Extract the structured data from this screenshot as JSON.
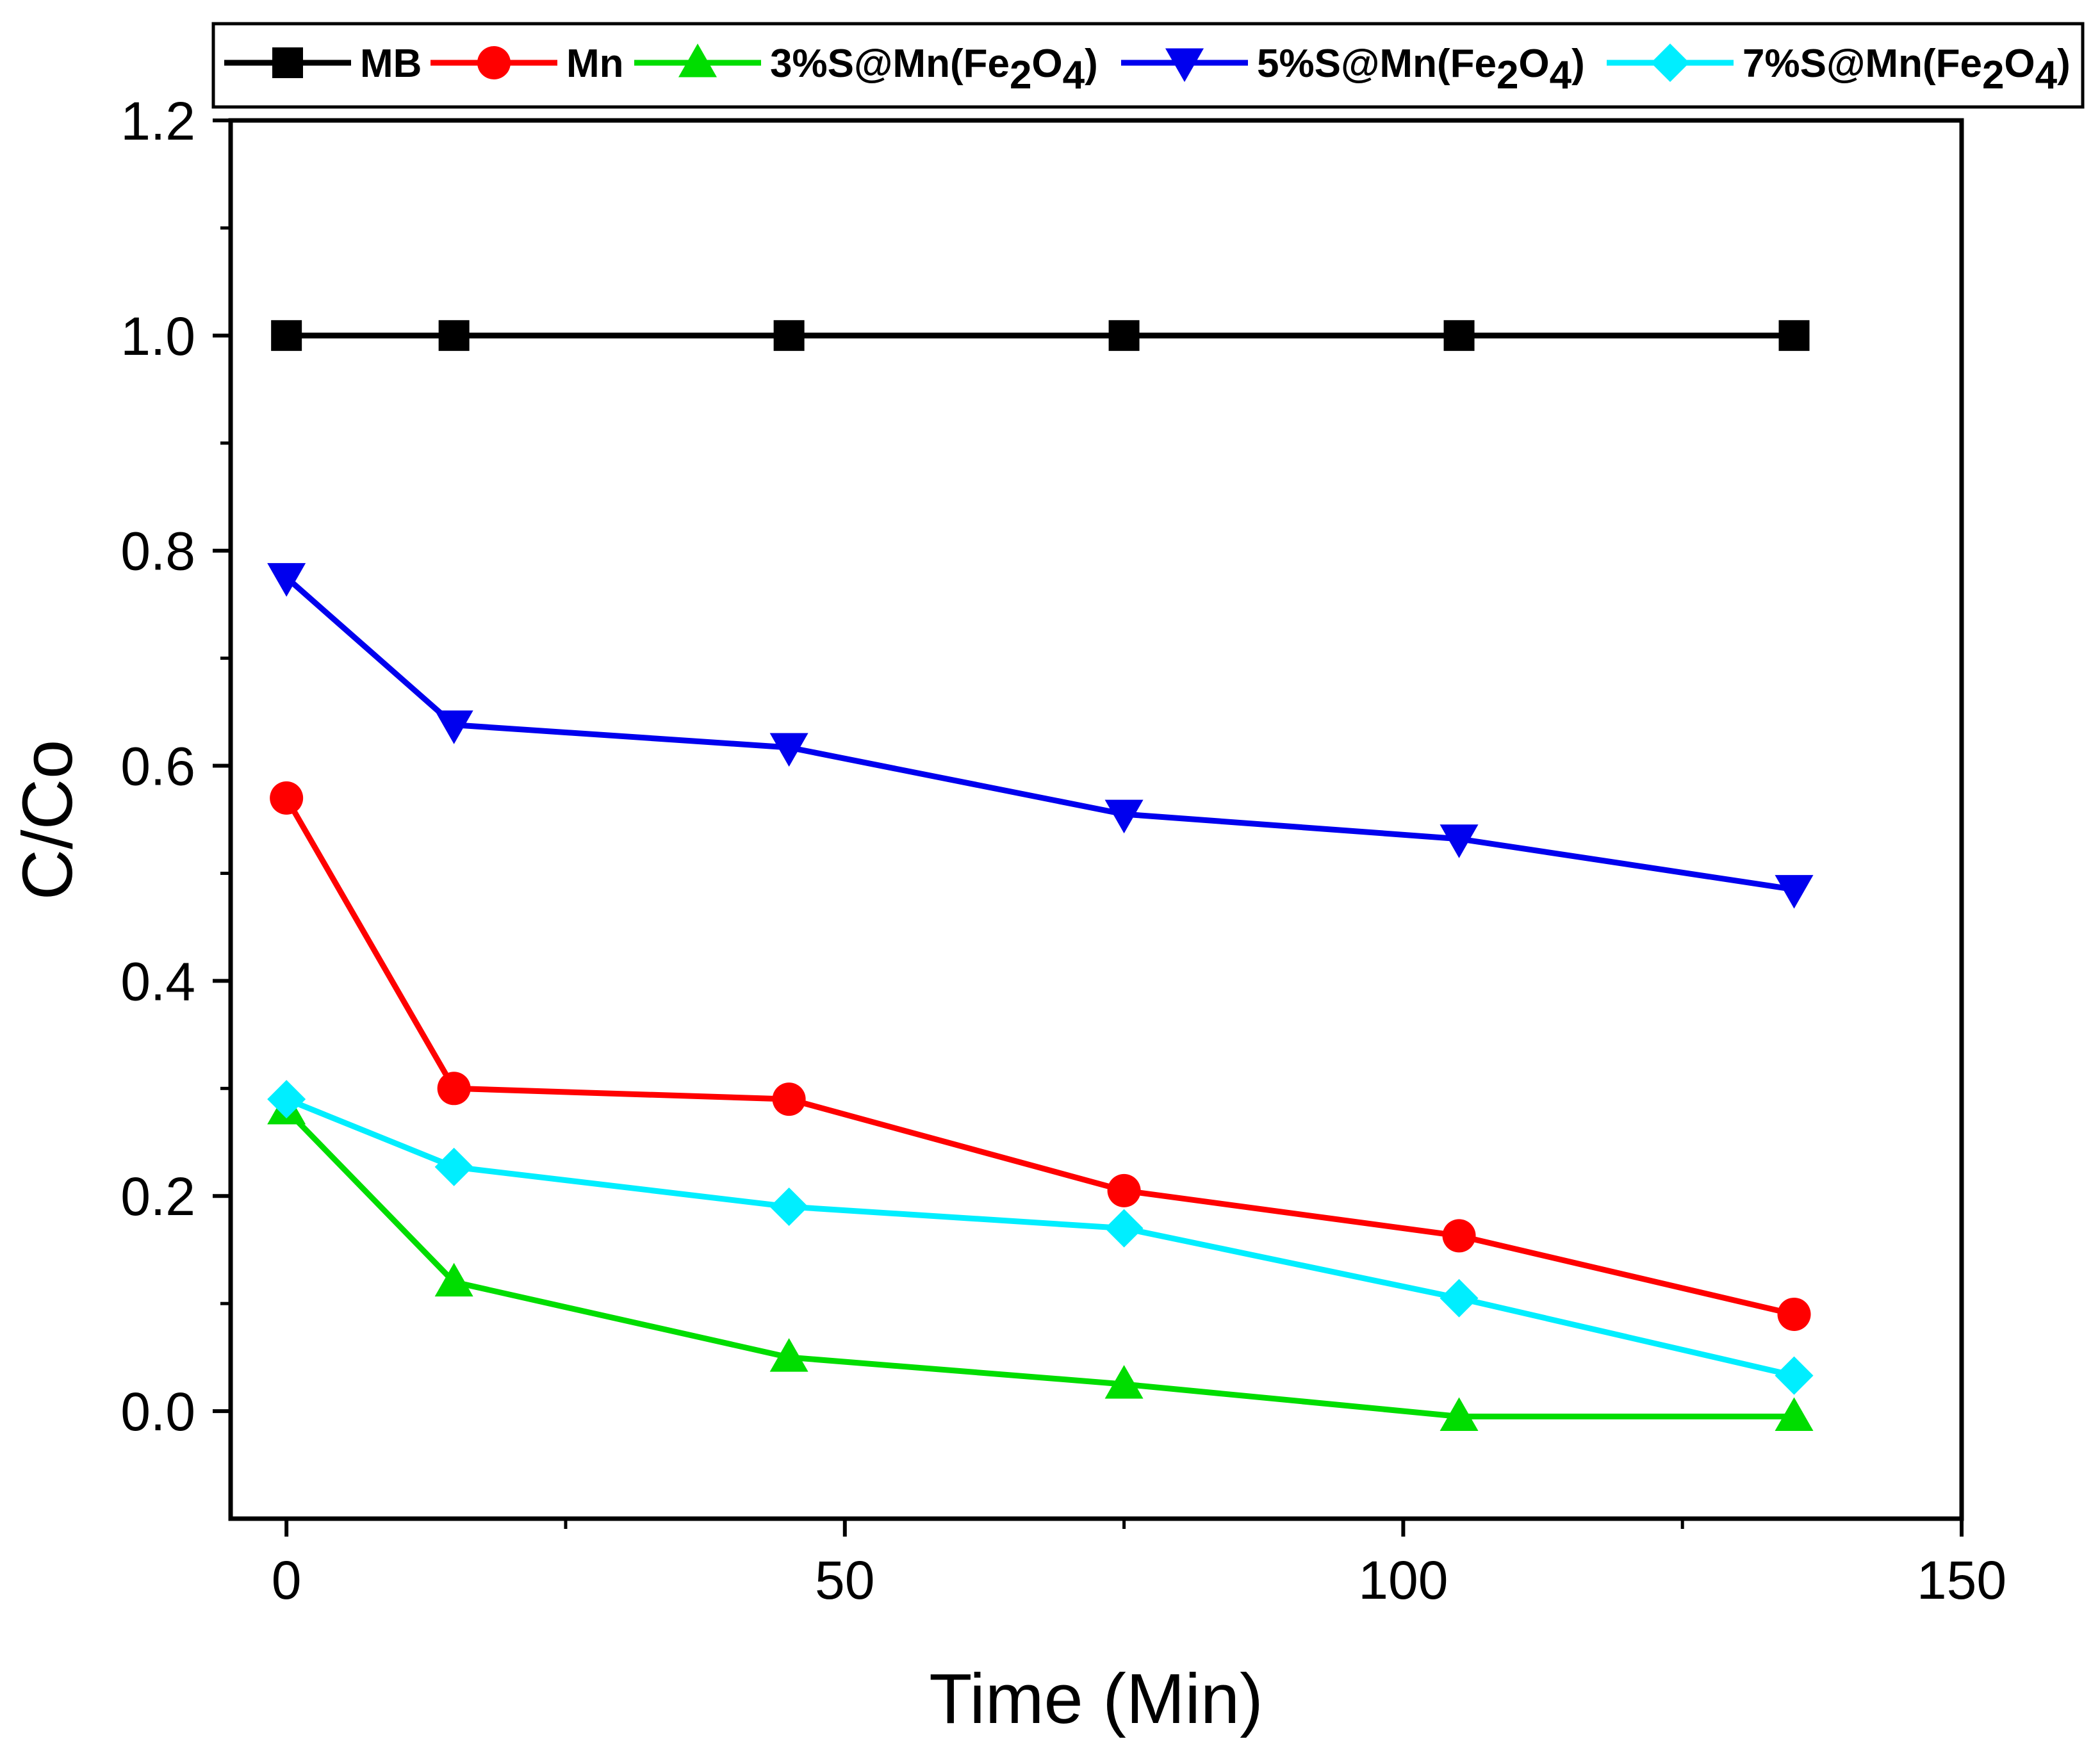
{
  "chart_data": {
    "type": "line",
    "title": "",
    "xlabel": "Time (Min)",
    "ylabel": "C/Co",
    "xlim": [
      -5,
      150
    ],
    "ylim": [
      -0.1,
      1.2
    ],
    "x_ticks": [
      0,
      50,
      100,
      150
    ],
    "x_tick_labels": [
      "0",
      "50",
      "100",
      "150"
    ],
    "y_ticks": [
      0.0,
      0.2,
      0.4,
      0.6,
      0.8,
      1.0,
      1.2
    ],
    "y_tick_labels": [
      "0.0",
      "0.2",
      "0.4",
      "0.6",
      "0.8",
      "1.0",
      "1.2"
    ],
    "grid": false,
    "legend_position": "top",
    "x": [
      0,
      15,
      45,
      75,
      105,
      135
    ],
    "series": [
      {
        "name": "MB",
        "label_main": "MB",
        "marker": "square",
        "color": "#000000",
        "values": [
          1.0,
          1.0,
          1.0,
          1.0,
          1.0,
          1.0
        ]
      },
      {
        "name": "Mn",
        "label_main": "Mn",
        "marker": "circle",
        "color": "#ff0000",
        "values": [
          0.57,
          0.3,
          0.29,
          0.205,
          0.163,
          0.09
        ]
      },
      {
        "name": "3%S@Mn(Fe2O4)",
        "label_main": "3%S@Mn",
        "label_parts": [
          "(Fe",
          "2",
          "O",
          "4",
          ")"
        ],
        "marker": "triangle-up",
        "color": "#00dd00",
        "values": [
          0.28,
          0.12,
          0.05,
          0.025,
          -0.005,
          -0.005
        ]
      },
      {
        "name": "5%S@Mn(Fe2O4)",
        "label_main": "5%S@Mn",
        "label_parts": [
          "(Fe",
          "2",
          "O",
          "4",
          ")"
        ],
        "marker": "triangle-down",
        "color": "#0000ee",
        "values": [
          0.775,
          0.638,
          0.617,
          0.555,
          0.532,
          0.485
        ]
      },
      {
        "name": "7%S@Mn(Fe2O4)",
        "label_main": "7%S@Mn",
        "label_parts": [
          "(Fe",
          "2",
          "O",
          "4",
          ")"
        ],
        "marker": "diamond",
        "color": "#00eeff",
        "values": [
          0.29,
          0.227,
          0.19,
          0.17,
          0.105,
          0.033
        ]
      }
    ]
  }
}
